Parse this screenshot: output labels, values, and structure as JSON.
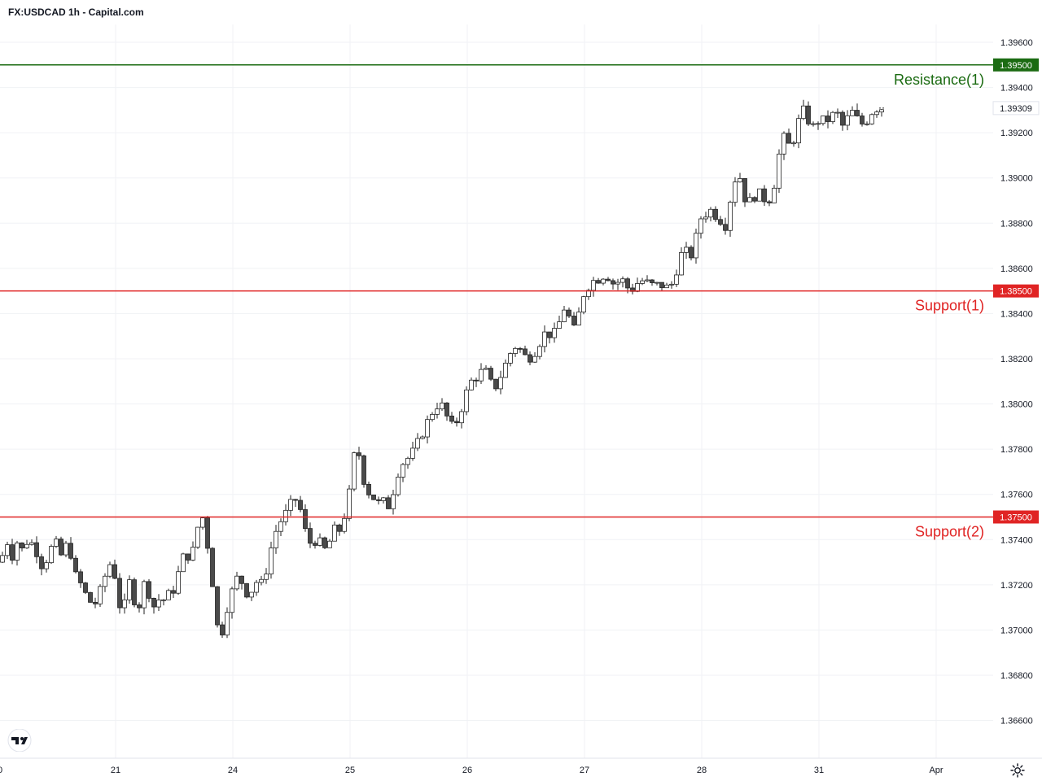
{
  "header": {
    "title": "FX:USDCAD 1h - Capital.com"
  },
  "colors": {
    "resistance": "#1b6b12",
    "support": "#e02424",
    "candle_up": "#ffffff",
    "candle_down": "#4a4a4a",
    "wick": "#222222",
    "grid": "#f0f2f5"
  },
  "icons": {
    "logo": "tradingview-logo-icon",
    "settings": "gear-icon"
  },
  "chart_data": {
    "type": "candlestick",
    "title": "FX:USDCAD 1h - Capital.com",
    "x_tick_labels": [
      "0",
      "21",
      "24",
      "25",
      "26",
      "27",
      "28",
      "31",
      "Apr"
    ],
    "y_tick_labels": [
      "1.39600",
      "1.39400",
      "1.39200",
      "1.39000",
      "1.38800",
      "1.38600",
      "1.38400",
      "1.38200",
      "1.38000",
      "1.37800",
      "1.37600",
      "1.37400",
      "1.37200",
      "1.37000",
      "1.36800",
      "1.36600"
    ],
    "ylim": [
      1.3653,
      1.3972
    ],
    "current_price": "1.39309",
    "grid": true,
    "levels": [
      {
        "name": "Resistance(1)",
        "value": 1.395,
        "label": "1.39500",
        "kind": "resistance"
      },
      {
        "name": "Support(1)",
        "value": 1.385,
        "label": "1.38500",
        "kind": "support"
      },
      {
        "name": "Support(2)",
        "value": 1.375,
        "label": "1.37500",
        "kind": "support"
      }
    ],
    "series_path": [
      [
        0,
        1.373
      ],
      [
        5,
        1.3735
      ],
      [
        10,
        1.374
      ],
      [
        14,
        1.373
      ],
      [
        18,
        1.3742
      ],
      [
        22,
        1.3738
      ],
      [
        28,
        1.3735
      ],
      [
        34,
        1.374
      ],
      [
        40,
        1.3738
      ],
      [
        46,
        1.3734
      ],
      [
        52,
        1.3728
      ],
      [
        58,
        1.3732
      ],
      [
        64,
        1.3737
      ],
      [
        70,
        1.3738
      ],
      [
        76,
        1.3732
      ],
      [
        82,
        1.3738
      ],
      [
        88,
        1.3733
      ],
      [
        94,
        1.3722
      ],
      [
        100,
        1.372
      ],
      [
        106,
        1.3715
      ],
      [
        112,
        1.3712
      ],
      [
        118,
        1.3712
      ],
      [
        124,
        1.3718
      ],
      [
        130,
        1.3725
      ],
      [
        136,
        1.373
      ],
      [
        142,
        1.3723
      ],
      [
        146,
        1.3712
      ],
      [
        150,
        1.3708
      ],
      [
        154,
        1.3712
      ],
      [
        158,
        1.3722
      ],
      [
        162,
        1.3718
      ],
      [
        166,
        1.3712
      ],
      [
        170,
        1.371
      ],
      [
        174,
        1.3715
      ],
      [
        178,
        1.3722
      ],
      [
        182,
        1.3718
      ],
      [
        186,
        1.3712
      ],
      [
        190,
        1.371
      ],
      [
        194,
        1.3714
      ],
      [
        198,
        1.3712
      ],
      [
        204,
        1.3715
      ],
      [
        210,
        1.3716
      ],
      [
        216,
        1.372
      ],
      [
        222,
        1.373
      ],
      [
        228,
        1.3734
      ],
      [
        234,
        1.3732
      ],
      [
        240,
        1.3738
      ],
      [
        244,
        1.3748
      ],
      [
        250,
        1.375
      ],
      [
        254,
        1.374
      ],
      [
        258,
        1.373
      ],
      [
        262,
        1.3718
      ],
      [
        265,
        1.3705
      ],
      [
        268,
        1.37
      ],
      [
        272,
        1.3698
      ],
      [
        276,
        1.3705
      ],
      [
        280,
        1.3712
      ],
      [
        286,
        1.3718
      ],
      [
        290,
        1.3722
      ],
      [
        294,
        1.3725
      ],
      [
        298,
        1.372
      ],
      [
        304,
        1.3716
      ],
      [
        310,
        1.3718
      ],
      [
        316,
        1.3722
      ],
      [
        322,
        1.372
      ],
      [
        328,
        1.3728
      ],
      [
        334,
        1.3738
      ],
      [
        340,
        1.3745
      ],
      [
        346,
        1.3749
      ],
      [
        352,
        1.3752
      ],
      [
        358,
        1.3756
      ],
      [
        364,
        1.3758
      ],
      [
        370,
        1.3752
      ],
      [
        376,
        1.3742
      ],
      [
        382,
        1.3738
      ],
      [
        388,
        1.374
      ],
      [
        394,
        1.3738
      ],
      [
        400,
        1.3735
      ],
      [
        406,
        1.374
      ],
      [
        412,
        1.3745
      ],
      [
        418,
        1.3744
      ],
      [
        424,
        1.3752
      ],
      [
        430,
        1.3762
      ],
      [
        434,
        1.3775
      ],
      [
        438,
        1.3782
      ],
      [
        442,
        1.3776
      ],
      [
        446,
        1.3768
      ],
      [
        450,
        1.3762
      ],
      [
        456,
        1.376
      ],
      [
        462,
        1.3757
      ],
      [
        468,
        1.3755
      ],
      [
        474,
        1.3758
      ],
      [
        478,
        1.3754
      ],
      [
        482,
        1.376
      ],
      [
        486,
        1.3767
      ],
      [
        492,
        1.3773
      ],
      [
        498,
        1.3775
      ],
      [
        504,
        1.3777
      ],
      [
        510,
        1.378
      ],
      [
        516,
        1.3785
      ],
      [
        522,
        1.379
      ],
      [
        528,
        1.3794
      ],
      [
        534,
        1.3799
      ],
      [
        540,
        1.38
      ],
      [
        546,
        1.3798
      ],
      [
        550,
        1.3793
      ],
      [
        554,
        1.379
      ],
      [
        558,
        1.379
      ],
      [
        564,
        1.3795
      ],
      [
        570,
        1.3802
      ],
      [
        576,
        1.3808
      ],
      [
        582,
        1.3812
      ],
      [
        588,
        1.3812
      ],
      [
        594,
        1.3816
      ],
      [
        600,
        1.3812
      ],
      [
        606,
        1.3806
      ],
      [
        612,
        1.381
      ],
      [
        618,
        1.3815
      ],
      [
        624,
        1.382
      ],
      [
        630,
        1.3825
      ],
      [
        636,
        1.3826
      ],
      [
        642,
        1.3822
      ],
      [
        648,
        1.382
      ],
      [
        654,
        1.3822
      ],
      [
        660,
        1.3825
      ],
      [
        666,
        1.383
      ],
      [
        672,
        1.3832
      ],
      [
        678,
        1.383
      ],
      [
        684,
        1.3832
      ],
      [
        690,
        1.384
      ],
      [
        696,
        1.3845
      ],
      [
        700,
        1.3836
      ],
      [
        706,
        1.3832
      ],
      [
        710,
        1.3838
      ],
      [
        714,
        1.3845
      ],
      [
        718,
        1.385
      ],
      [
        722,
        1.3852
      ],
      [
        726,
        1.3854
      ],
      [
        732,
        1.3855
      ],
      [
        738,
        1.3856
      ],
      [
        744,
        1.3858
      ],
      [
        750,
        1.3855
      ],
      [
        756,
        1.3852
      ],
      [
        762,
        1.3856
      ],
      [
        768,
        1.3853
      ],
      [
        774,
        1.385
      ],
      [
        780,
        1.3852
      ],
      [
        786,
        1.3855
      ],
      [
        792,
        1.3854
      ],
      [
        798,
        1.3853
      ],
      [
        804,
        1.3852
      ],
      [
        810,
        1.3853
      ],
      [
        816,
        1.3852
      ],
      [
        822,
        1.3851
      ],
      [
        828,
        1.3855
      ],
      [
        834,
        1.3864
      ],
      [
        840,
        1.3868
      ],
      [
        846,
        1.3866
      ],
      [
        852,
        1.3866
      ],
      [
        856,
        1.3876
      ],
      [
        860,
        1.3882
      ],
      [
        866,
        1.3884
      ],
      [
        872,
        1.3886
      ],
      [
        878,
        1.3884
      ],
      [
        884,
        1.3882
      ],
      [
        888,
        1.388
      ],
      [
        892,
        1.3879
      ],
      [
        896,
        1.3888
      ],
      [
        900,
        1.3898
      ],
      [
        904,
        1.39
      ],
      [
        908,
        1.3902
      ],
      [
        912,
        1.3895
      ],
      [
        916,
        1.389
      ],
      [
        920,
        1.3889
      ],
      [
        926,
        1.3892
      ],
      [
        932,
        1.3893
      ],
      [
        938,
        1.3891
      ],
      [
        944,
        1.389
      ],
      [
        950,
        1.3895
      ],
      [
        954,
        1.3905
      ],
      [
        958,
        1.3912
      ],
      [
        962,
        1.3918
      ],
      [
        966,
        1.3916
      ],
      [
        970,
        1.3914
      ],
      [
        976,
        1.3918
      ],
      [
        980,
        1.3924
      ],
      [
        984,
        1.3928
      ],
      [
        988,
        1.393
      ],
      [
        992,
        1.3926
      ],
      [
        996,
        1.3924
      ],
      [
        1000,
        1.3922
      ],
      [
        1006,
        1.3926
      ],
      [
        1012,
        1.3925
      ],
      [
        1018,
        1.3926
      ],
      [
        1024,
        1.3928
      ],
      [
        1030,
        1.3928
      ],
      [
        1036,
        1.3922
      ],
      [
        1040,
        1.3925
      ],
      [
        1044,
        1.393
      ],
      [
        1050,
        1.3928
      ],
      [
        1056,
        1.3924
      ],
      [
        1060,
        1.3924
      ],
      [
        1066,
        1.3926
      ],
      [
        1072,
        1.393
      ],
      [
        1078,
        1.3931
      ],
      [
        1084,
        1.3931
      ]
    ]
  }
}
